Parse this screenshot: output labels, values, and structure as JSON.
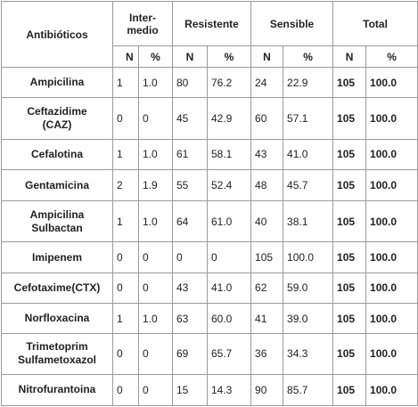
{
  "header": {
    "antibiotic_col": "Antibióticos",
    "groups": [
      "Inter-\nmedio",
      "Resistente",
      "Sensible",
      "Total"
    ],
    "sub": {
      "n": "N",
      "pct": "%"
    }
  },
  "rows": [
    {
      "name": "Ampicilina",
      "int_n": "1",
      "int_pct": "1.0",
      "res_n": "80",
      "res_pct": "76.2",
      "sen_n": "24",
      "sen_pct": "22.9",
      "tot_n": "105",
      "tot_pct": "100.0"
    },
    {
      "name": "Ceftazidime\n(CAZ)",
      "int_n": "0",
      "int_pct": "0",
      "res_n": "45",
      "res_pct": "42.9",
      "sen_n": "60",
      "sen_pct": "57.1",
      "tot_n": "105",
      "tot_pct": "100.0"
    },
    {
      "name": "Cefalotina",
      "int_n": "1",
      "int_pct": "1.0",
      "res_n": "61",
      "res_pct": "58.1",
      "sen_n": "43",
      "sen_pct": "41.0",
      "tot_n": "105",
      "tot_pct": "100.0"
    },
    {
      "name": "Gentamicina",
      "int_n": "2",
      "int_pct": "1.9",
      "res_n": "55",
      "res_pct": "52.4",
      "sen_n": "48",
      "sen_pct": "45.7",
      "tot_n": "105",
      "tot_pct": "100.0"
    },
    {
      "name": "Ampicilina\nSulbactan",
      "int_n": "1",
      "int_pct": "1.0",
      "res_n": "64",
      "res_pct": "61.0",
      "sen_n": "40",
      "sen_pct": "38.1",
      "tot_n": "105",
      "tot_pct": "100.0"
    },
    {
      "name": "Imipenem",
      "int_n": "0",
      "int_pct": "0",
      "res_n": "0",
      "res_pct": "0",
      "sen_n": "105",
      "sen_pct": "100.0",
      "tot_n": "105",
      "tot_pct": "100.0"
    },
    {
      "name": "Cefotaxime(CTX)",
      "int_n": "0",
      "int_pct": "0",
      "res_n": "43",
      "res_pct": "41.0",
      "sen_n": "62",
      "sen_pct": "59.0",
      "tot_n": "105",
      "tot_pct": "100.0"
    },
    {
      "name": "Norfloxacina",
      "int_n": "1",
      "int_pct": "1.0",
      "res_n": "63",
      "res_pct": "60.0",
      "sen_n": "41",
      "sen_pct": "39.0",
      "tot_n": "105",
      "tot_pct": "100.0"
    },
    {
      "name": "Trimetoprim\nSulfametoxazol",
      "int_n": "0",
      "int_pct": "0",
      "res_n": "69",
      "res_pct": "65.7",
      "sen_n": "36",
      "sen_pct": "34.3",
      "tot_n": "105",
      "tot_pct": "100.0"
    },
    {
      "name": "Nitrofurantoina",
      "int_n": "0",
      "int_pct": "0",
      "res_n": "15",
      "res_pct": "14.3",
      "sen_n": "90",
      "sen_pct": "85.7",
      "tot_n": "105",
      "tot_pct": "100.0"
    }
  ]
}
